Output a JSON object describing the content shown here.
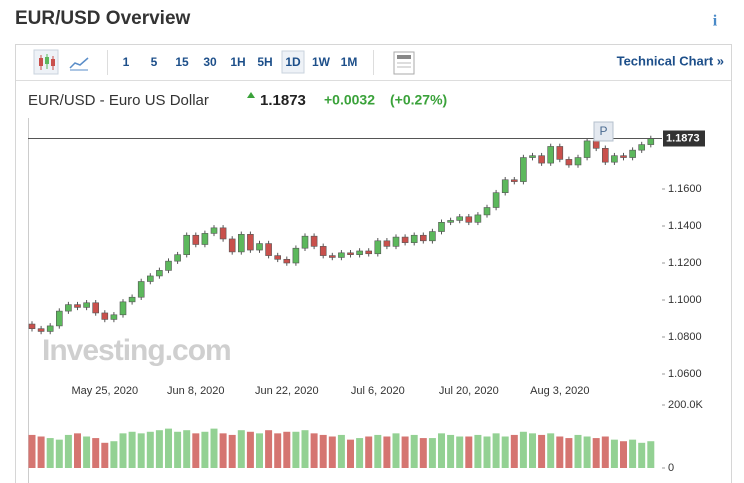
{
  "header": {
    "title": "EUR/USD Overview",
    "info": "i"
  },
  "toolbar": {
    "intervals": [
      "1",
      "5",
      "15",
      "30",
      "1H",
      "5H",
      "1D",
      "1W",
      "1M"
    ],
    "selected_index": 6,
    "link": "Technical Chart »"
  },
  "quote": {
    "name": "EUR/USD - Euro US Dollar",
    "price": "1.1873",
    "change": "+0.0032",
    "change_pct": "(+0.27%)"
  },
  "chart_data": {
    "type": "candlestick",
    "watermark": "Investing.com",
    "annotation": "P",
    "last_price": 1.1873,
    "last_price_label": "1.1873",
    "up_color": "#5cb85c",
    "down_color": "#c9504c",
    "volume_up_color": "#93d193",
    "volume_down_color": "#d57571",
    "grid": false,
    "categories": [
      null,
      null,
      null,
      null,
      null,
      null,
      null,
      null,
      "May 25, 2020",
      null,
      null,
      null,
      null,
      null,
      null,
      null,
      null,
      null,
      "Jun 8, 2020",
      null,
      null,
      null,
      null,
      null,
      null,
      null,
      null,
      null,
      "Jun 22, 2020",
      null,
      null,
      null,
      null,
      null,
      null,
      null,
      null,
      null,
      "Jul 6, 2020",
      null,
      null,
      null,
      null,
      null,
      null,
      null,
      null,
      null,
      "Jul 20, 2020",
      null,
      null,
      null,
      null,
      null,
      null,
      null,
      null,
      null,
      "Aug 3, 2020",
      null,
      null,
      null,
      null,
      null,
      null,
      null,
      null,
      null,
      null
    ],
    "open": [
      1.087,
      1.0845,
      1.083,
      1.086,
      1.094,
      1.0975,
      1.096,
      1.0985,
      1.093,
      1.0895,
      1.092,
      1.099,
      1.1015,
      1.11,
      1.113,
      1.116,
      1.121,
      1.1245,
      1.135,
      1.13,
      1.136,
      1.139,
      1.133,
      1.126,
      1.1355,
      1.127,
      1.1305,
      1.124,
      1.122,
      1.12,
      1.128,
      1.1345,
      1.129,
      1.124,
      1.123,
      1.1255,
      1.1245,
      1.1265,
      1.125,
      1.132,
      1.129,
      1.134,
      1.131,
      1.135,
      1.132,
      1.137,
      1.142,
      1.143,
      1.145,
      1.142,
      1.146,
      1.15,
      1.158,
      1.165,
      1.164,
      1.177,
      1.178,
      1.174,
      1.183,
      1.176,
      1.173,
      1.177,
      1.186,
      1.182,
      1.1745,
      1.178,
      1.177,
      1.181,
      1.184
    ],
    "high": [
      1.0885,
      1.086,
      1.0875,
      1.0955,
      1.099,
      1.099,
      1.1,
      1.1,
      1.0945,
      1.0935,
      1.1005,
      1.103,
      1.1115,
      1.1145,
      1.1175,
      1.1225,
      1.126,
      1.1365,
      1.1365,
      1.1375,
      1.1405,
      1.1405,
      1.1345,
      1.137,
      1.137,
      1.132,
      1.132,
      1.1255,
      1.1235,
      1.1295,
      1.136,
      1.136,
      1.1305,
      1.1255,
      1.127,
      1.127,
      1.128,
      1.128,
      1.1335,
      1.1335,
      1.1355,
      1.1355,
      1.1365,
      1.1365,
      1.1385,
      1.1435,
      1.1445,
      1.1465,
      1.1465,
      1.1475,
      1.1515,
      1.1595,
      1.1665,
      1.1665,
      1.1785,
      1.1795,
      1.1795,
      1.1845,
      1.1845,
      1.1775,
      1.1785,
      1.1875,
      1.1875,
      1.1835,
      1.1795,
      1.1795,
      1.1825,
      1.1855,
      1.1888
    ],
    "low": [
      1.083,
      1.0815,
      1.0815,
      1.0845,
      1.0925,
      1.0945,
      1.0945,
      1.0915,
      1.088,
      1.088,
      1.0905,
      1.0975,
      1.1,
      1.1085,
      1.1115,
      1.1145,
      1.1195,
      1.123,
      1.1285,
      1.1285,
      1.1345,
      1.1315,
      1.1245,
      1.1245,
      1.1255,
      1.1255,
      1.1225,
      1.1205,
      1.1185,
      1.1185,
      1.1265,
      1.1275,
      1.1225,
      1.1215,
      1.1215,
      1.123,
      1.123,
      1.1235,
      1.1235,
      1.1275,
      1.1275,
      1.1295,
      1.1295,
      1.1305,
      1.1305,
      1.1355,
      1.1405,
      1.1415,
      1.1405,
      1.1405,
      1.1445,
      1.1485,
      1.1565,
      1.1625,
      1.1625,
      1.1755,
      1.1725,
      1.1725,
      1.1745,
      1.1715,
      1.1715,
      1.1755,
      1.1805,
      1.173,
      1.173,
      1.1755,
      1.1755,
      1.1795,
      1.1825
    ],
    "close": [
      1.0845,
      1.083,
      1.086,
      1.094,
      1.0975,
      1.096,
      1.0985,
      1.093,
      1.0895,
      1.092,
      1.099,
      1.1015,
      1.11,
      1.113,
      1.116,
      1.121,
      1.1245,
      1.135,
      1.13,
      1.136,
      1.139,
      1.133,
      1.126,
      1.1355,
      1.127,
      1.1305,
      1.124,
      1.122,
      1.12,
      1.128,
      1.1345,
      1.129,
      1.124,
      1.123,
      1.1255,
      1.1245,
      1.1265,
      1.125,
      1.132,
      1.129,
      1.134,
      1.131,
      1.135,
      1.132,
      1.137,
      1.142,
      1.143,
      1.145,
      1.142,
      1.146,
      1.15,
      1.158,
      1.165,
      1.164,
      1.177,
      1.178,
      1.174,
      1.183,
      1.176,
      1.173,
      1.177,
      1.186,
      1.182,
      1.1745,
      1.178,
      1.177,
      1.181,
      1.184,
      1.1873
    ],
    "volume": [
      105000,
      100000,
      95000,
      90000,
      105000,
      110000,
      100000,
      95000,
      80000,
      85000,
      110000,
      115000,
      110000,
      115000,
      120000,
      125000,
      115000,
      120000,
      110000,
      115000,
      125000,
      110000,
      105000,
      120000,
      115000,
      110000,
      120000,
      110000,
      115000,
      115000,
      120000,
      110000,
      105000,
      100000,
      105000,
      90000,
      95000,
      100000,
      105000,
      100000,
      110000,
      100000,
      105000,
      95000,
      95000,
      110000,
      105000,
      100000,
      100000,
      105000,
      100000,
      110000,
      100000,
      105000,
      115000,
      110000,
      105000,
      110000,
      100000,
      95000,
      105000,
      100000,
      95000,
      100000,
      90000,
      85000,
      90000,
      80000,
      85000
    ],
    "ylim": [
      1.05,
      1.2
    ],
    "yticks": [
      {
        "value": 1.06,
        "label": "1.0600"
      },
      {
        "value": 1.08,
        "label": "1.0800"
      },
      {
        "value": 1.1,
        "label": "1.1000"
      },
      {
        "value": 1.12,
        "label": "1.1200"
      },
      {
        "value": 1.14,
        "label": "1.1400"
      },
      {
        "value": 1.16,
        "label": "1.1600"
      }
    ],
    "volume_ylim": [
      0,
      200000
    ],
    "volume_yticks": [
      0,
      {
        "value": 200000,
        "label": "200.0K"
      }
    ]
  }
}
